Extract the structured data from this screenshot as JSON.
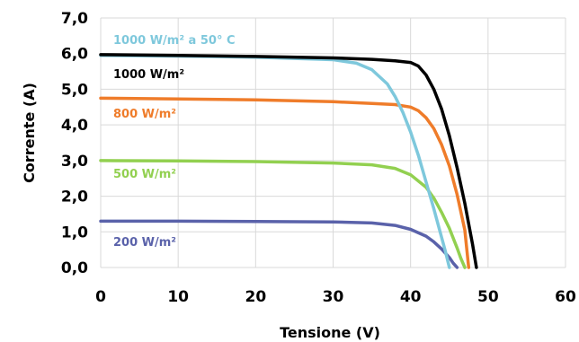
{
  "chart_data": {
    "type": "line",
    "title": "",
    "xlabel": "Tensione (V)",
    "ylabel": "Corrente (A)",
    "xlim": [
      0,
      60
    ],
    "ylim": [
      0,
      7
    ],
    "xticks": [
      "0",
      "10",
      "20",
      "30",
      "40",
      "50",
      "60"
    ],
    "yticks": [
      "0,0",
      "1,0",
      "2,0",
      "3,0",
      "4,0",
      "5,0",
      "6,0",
      "7,0"
    ],
    "grid": true,
    "series": [
      {
        "name": "1000 W/m² a 50° C",
        "color": "#7ec8dc",
        "x": [
          0,
          10,
          20,
          30,
          33,
          35,
          37,
          38,
          39,
          40,
          41,
          42,
          43,
          44,
          44.5,
          45
        ],
        "y": [
          5.95,
          5.93,
          5.9,
          5.83,
          5.73,
          5.55,
          5.15,
          4.8,
          4.35,
          3.8,
          3.15,
          2.4,
          1.65,
          0.85,
          0.45,
          0.0
        ]
      },
      {
        "name": "1000 W/m²",
        "color": "#000000",
        "x": [
          0,
          10,
          20,
          30,
          35,
          38,
          40,
          41,
          42,
          43,
          44,
          45,
          46,
          47,
          48,
          48.5
        ],
        "y": [
          5.97,
          5.95,
          5.92,
          5.88,
          5.84,
          5.8,
          5.75,
          5.65,
          5.4,
          5.0,
          4.45,
          3.7,
          2.8,
          1.8,
          0.65,
          0.0
        ]
      },
      {
        "name": "800 W/m²",
        "color": "#ef7c2a",
        "x": [
          0,
          10,
          20,
          30,
          35,
          38,
          40,
          41,
          42,
          43,
          44,
          45,
          46,
          47,
          47.5
        ],
        "y": [
          4.75,
          4.73,
          4.7,
          4.65,
          4.6,
          4.57,
          4.5,
          4.4,
          4.2,
          3.9,
          3.45,
          2.85,
          2.05,
          1.05,
          0.0
        ]
      },
      {
        "name": "500 W/m²",
        "color": "#92d050",
        "x": [
          0,
          10,
          20,
          30,
          35,
          38,
          40,
          42,
          43,
          44,
          45,
          46,
          46.5,
          47
        ],
        "y": [
          3.0,
          2.99,
          2.97,
          2.93,
          2.88,
          2.78,
          2.6,
          2.25,
          1.95,
          1.55,
          1.1,
          0.55,
          0.25,
          0.0
        ]
      },
      {
        "name": "200 W/m²",
        "color": "#5a62aa",
        "x": [
          0,
          10,
          20,
          30,
          35,
          38,
          40,
          42,
          43,
          44,
          45,
          45.5,
          46
        ],
        "y": [
          1.3,
          1.3,
          1.29,
          1.28,
          1.25,
          1.18,
          1.07,
          0.88,
          0.72,
          0.52,
          0.28,
          0.12,
          0.0
        ]
      }
    ]
  }
}
